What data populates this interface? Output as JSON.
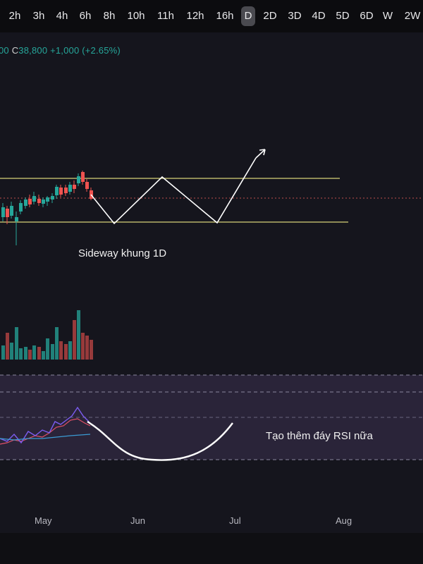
{
  "timeframes": [
    "2h",
    "3h",
    "4h",
    "6h",
    "8h",
    "10h",
    "11h",
    "12h",
    "16h",
    "D",
    "2D",
    "3D",
    "4D",
    "5D",
    "6D",
    "W",
    "2W"
  ],
  "active_timeframe": "D",
  "ohlc": {
    "prefix": "00",
    "close_label": "C",
    "close": "38,800",
    "change": "+1,000",
    "change_pct": "(+2.65%)"
  },
  "annotations": {
    "sideway": "Sideway khung 1D",
    "rsi_note": "Tạo thêm đáy RSI nữa"
  },
  "time_axis": [
    "May",
    "Jun",
    "Jul",
    "Aug"
  ],
  "colors": {
    "background": "#15151d",
    "toolbar_bg": "#0c0c0f",
    "up": "#26a69a",
    "down": "#ef5350",
    "level_line": "#d8d27a",
    "rsi_band": "#2e2740",
    "rsi_line": "#7b5cf0",
    "rsi_ma": "#3b9bd4",
    "drawing": "#ffffff"
  }
}
